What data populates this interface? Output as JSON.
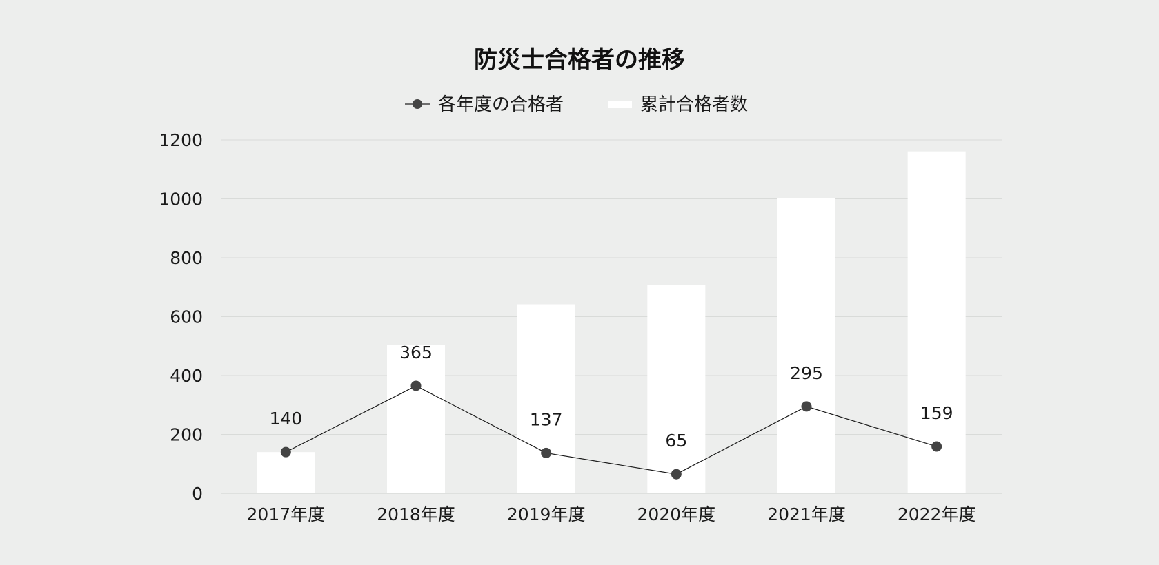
{
  "chart_data": {
    "type": "bar",
    "title": "防災士合格者の推移",
    "categories": [
      "2017年度",
      "2018年度",
      "2019年度",
      "2020年度",
      "2021年度",
      "2022年度"
    ],
    "series": [
      {
        "name": "各年度の合格者",
        "type": "line",
        "values": [
          140,
          365,
          137,
          65,
          295,
          159
        ],
        "color": "#444444",
        "data_labels": true
      },
      {
        "name": "累計合格者数",
        "type": "bar",
        "values": [
          140,
          505,
          642,
          707,
          1002,
          1161
        ],
        "color": "#ffffff",
        "data_labels": false
      }
    ],
    "y_ticks": [
      "0",
      "200",
      "400",
      "600",
      "800",
      "1000",
      "1200"
    ],
    "ylim": [
      0,
      1200
    ],
    "xlabel": "",
    "ylabel": "",
    "grid": true,
    "legend_position": "top-center"
  }
}
